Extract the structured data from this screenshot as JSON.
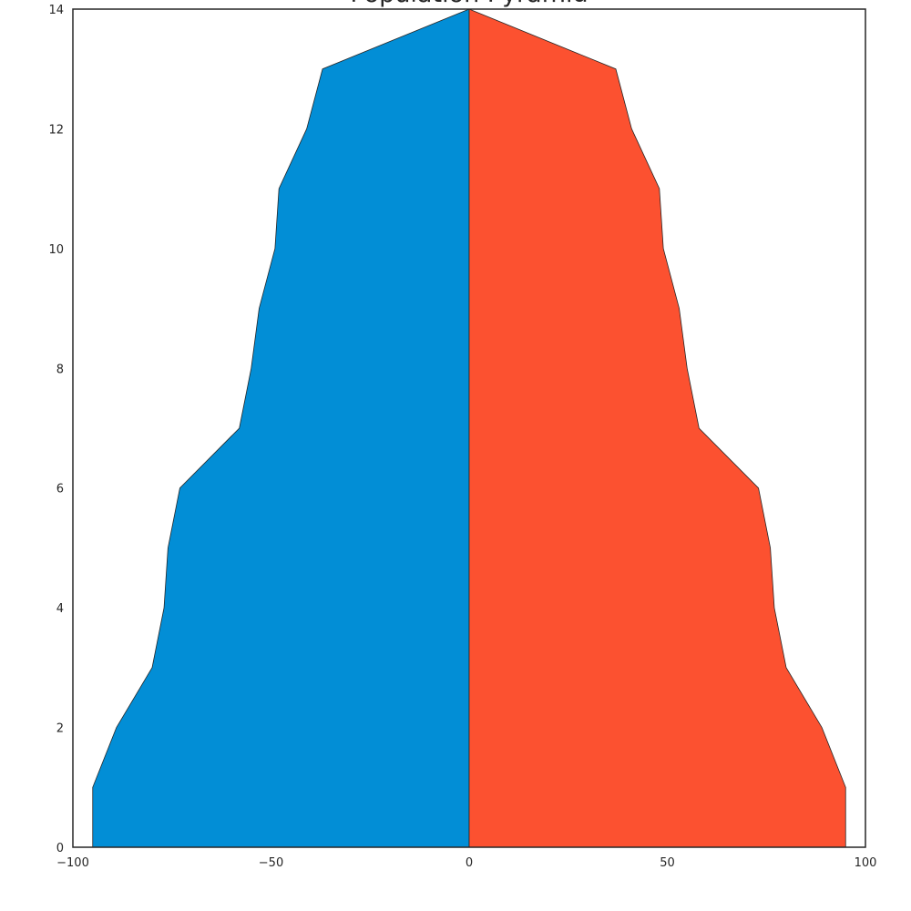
{
  "chart_data": {
    "type": "area",
    "title": "Population Pyramid",
    "xlabel": "",
    "ylabel": "",
    "xlim": [
      -100,
      100
    ],
    "ylim": [
      0,
      14
    ],
    "xticks": [
      -100,
      -50,
      0,
      50,
      100
    ],
    "xtick_labels": [
      "−100",
      "−50",
      "0",
      "50",
      "100"
    ],
    "yticks": [
      0,
      2,
      4,
      6,
      8,
      10,
      12,
      14
    ],
    "ytick_labels": [
      "0",
      "2",
      "4",
      "6",
      "8",
      "10",
      "12",
      "14"
    ],
    "grid": false,
    "legend": "none",
    "y": [
      0,
      1,
      2,
      3,
      4,
      5,
      6,
      7,
      8,
      9,
      10,
      11,
      12,
      13,
      14
    ],
    "series": [
      {
        "color": "#028ED6",
        "values": [
          -95,
          -95,
          -89,
          -80,
          -77,
          -76,
          -73,
          -58,
          -55,
          -53,
          -49,
          -48,
          -41,
          -37,
          0
        ]
      },
      {
        "color": "#FC5130",
        "values": [
          95,
          95,
          89,
          80,
          77,
          76,
          73,
          58,
          55,
          53,
          49,
          48,
          41,
          37,
          0
        ]
      }
    ]
  }
}
